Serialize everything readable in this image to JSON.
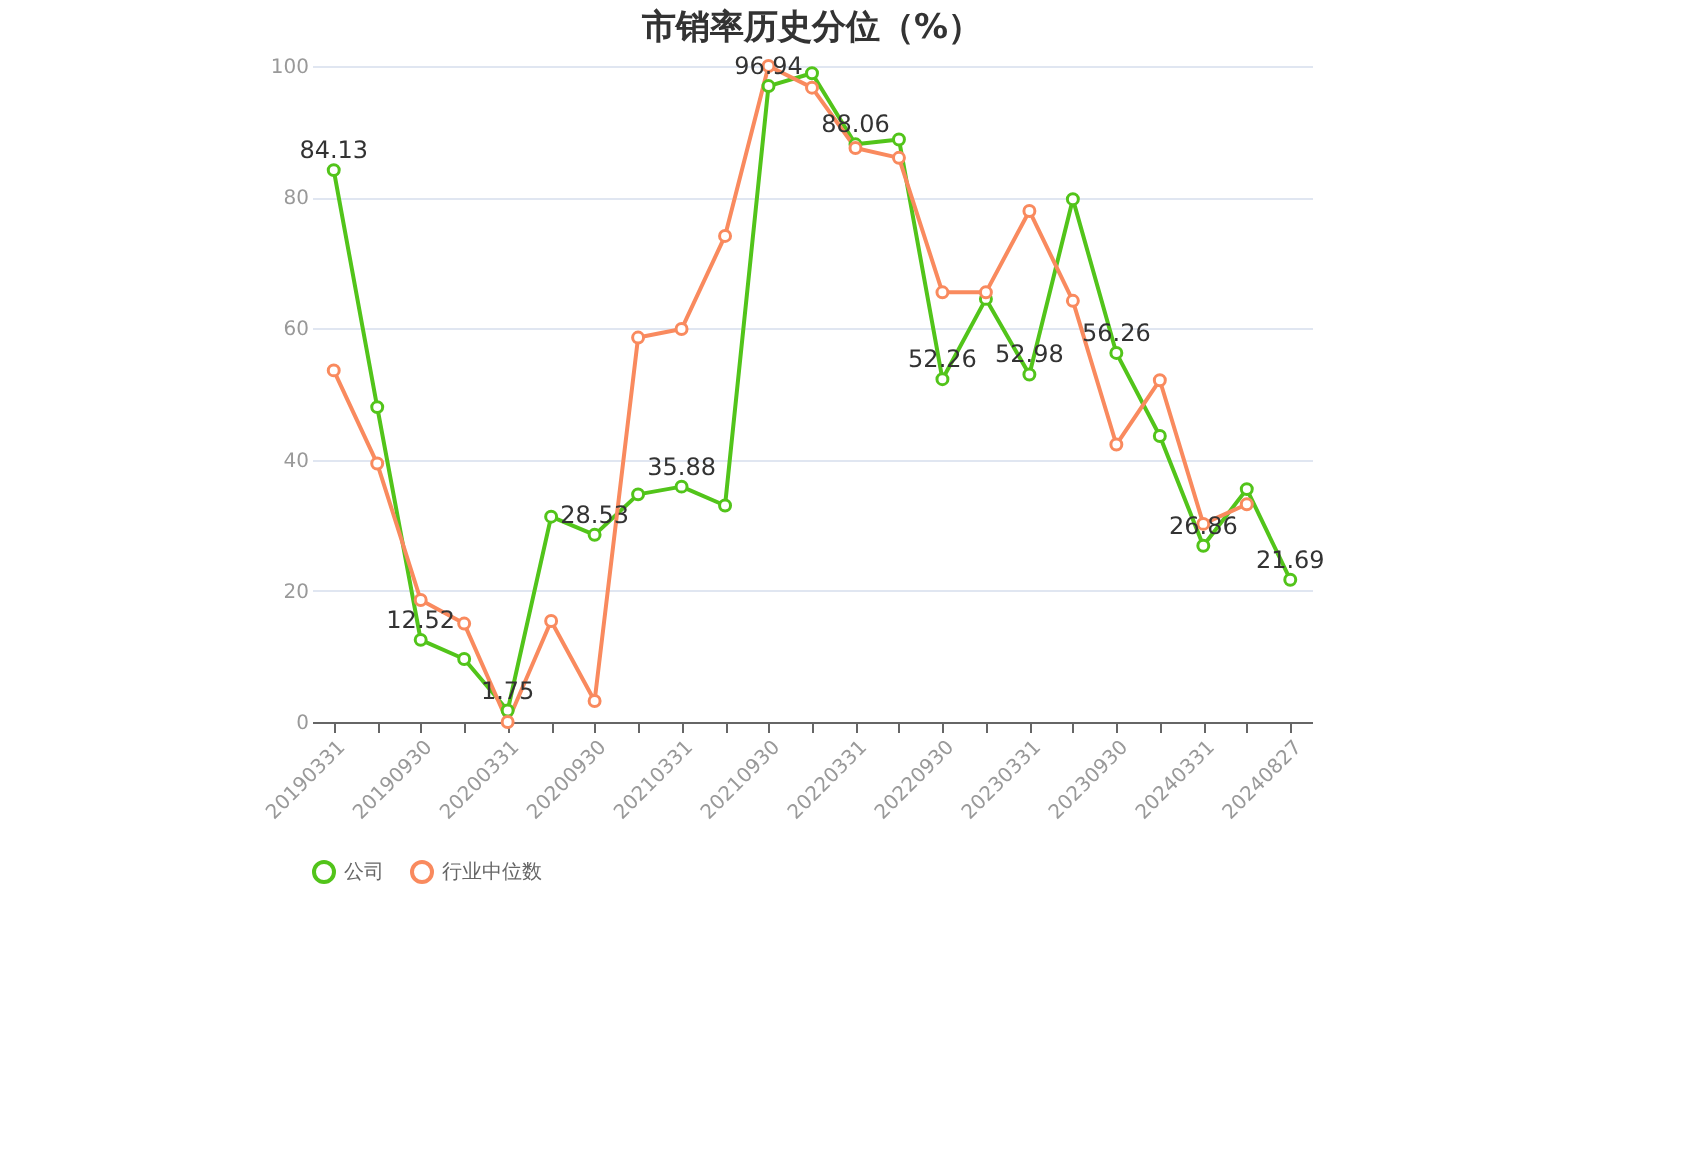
{
  "chart_data": {
    "type": "line",
    "title": "市销率历史分位（%）",
    "categories": [
      "20190331",
      null,
      "20190930",
      null,
      "20200331",
      null,
      "20200930",
      null,
      "20210331",
      null,
      "20210930",
      null,
      "20220331",
      null,
      "20220930",
      null,
      "20230331",
      null,
      "20230930",
      null,
      "20240331",
      null,
      "20240827"
    ],
    "series": [
      {
        "name": "公司",
        "color": "#52c41a",
        "values": [
          84.13,
          48,
          12.52,
          9.6,
          1.75,
          31.3,
          28.53,
          34.7,
          35.88,
          33.0,
          96.94,
          98.9,
          88.06,
          88.8,
          52.26,
          64.5,
          52.98,
          79.7,
          56.26,
          43.6,
          26.86,
          35.5,
          21.69
        ],
        "value_labels": [
          "84.13",
          null,
          "12.52",
          null,
          "1.75",
          null,
          "28.53",
          null,
          "35.88",
          null,
          "96.94",
          null,
          "88.06",
          null,
          "52.26",
          null,
          "52.98",
          null,
          "56.26",
          null,
          "26.86",
          null,
          "21.69"
        ]
      },
      {
        "name": "行业中位数",
        "color": "#f98a5e",
        "values": [
          53.6,
          39.4,
          18.6,
          15.0,
          0,
          15.4,
          3.2,
          58.6,
          59.9,
          74.1,
          100,
          96.7,
          87.5,
          86.0,
          65.5,
          65.5,
          77.9,
          64.2,
          42.3,
          52.1,
          30.2,
          33.2,
          null
        ]
      }
    ],
    "ylim": [
      0,
      100
    ],
    "yticks": [
      0,
      20,
      40,
      60,
      80,
      100
    ],
    "grid": "y",
    "legend": "bottom",
    "marker": "circle",
    "line_style": "solid"
  }
}
